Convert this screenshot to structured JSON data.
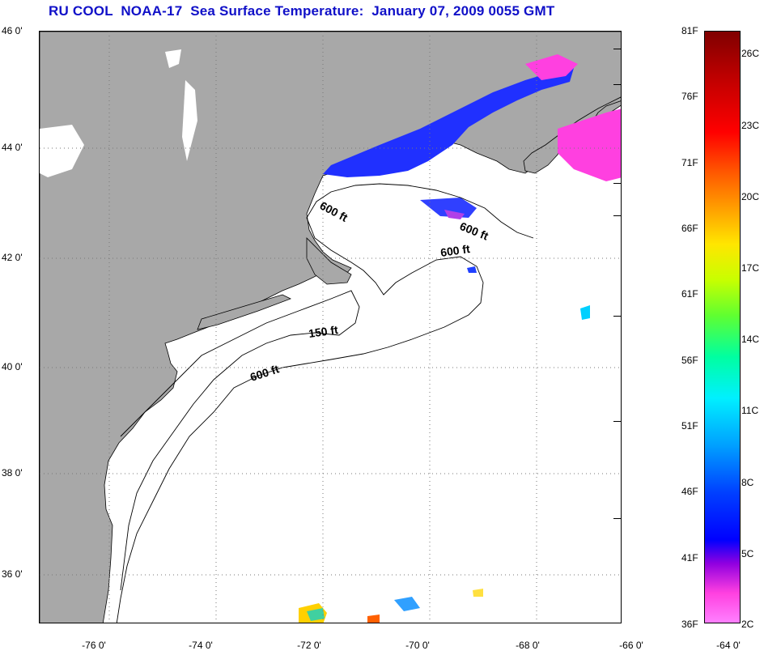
{
  "title": "RU COOL  NOAA-17  Sea Surface Temperature:  January 07, 2009 0055 GMT",
  "lat_labels": [
    "46 0'",
    "44 0'",
    "42 0'",
    "40 0'",
    "38 0'",
    "36 0'"
  ],
  "lon_labels": [
    "-76 0'",
    "-74 0'",
    "-72 0'",
    "-70 0'",
    "-68 0'",
    "-66 0'",
    "-64 0'"
  ],
  "contour_labels": [
    "600 ft",
    "600 ft",
    "600 ft",
    "150 ft",
    "600 ft"
  ],
  "colorbar": {
    "fahrenheit": [
      "81F",
      "76F",
      "71F",
      "66F",
      "61F",
      "56F",
      "51F",
      "46F",
      "41F",
      "36F"
    ],
    "celsius": [
      "26C",
      "23C",
      "20C",
      "17C",
      "14C",
      "11C",
      "8C",
      "5C",
      "2C"
    ]
  },
  "colors": {
    "land": "#a8a8a8",
    "title": "#1010c8",
    "cold": "#ff40e0",
    "cool": "#0000ff"
  }
}
